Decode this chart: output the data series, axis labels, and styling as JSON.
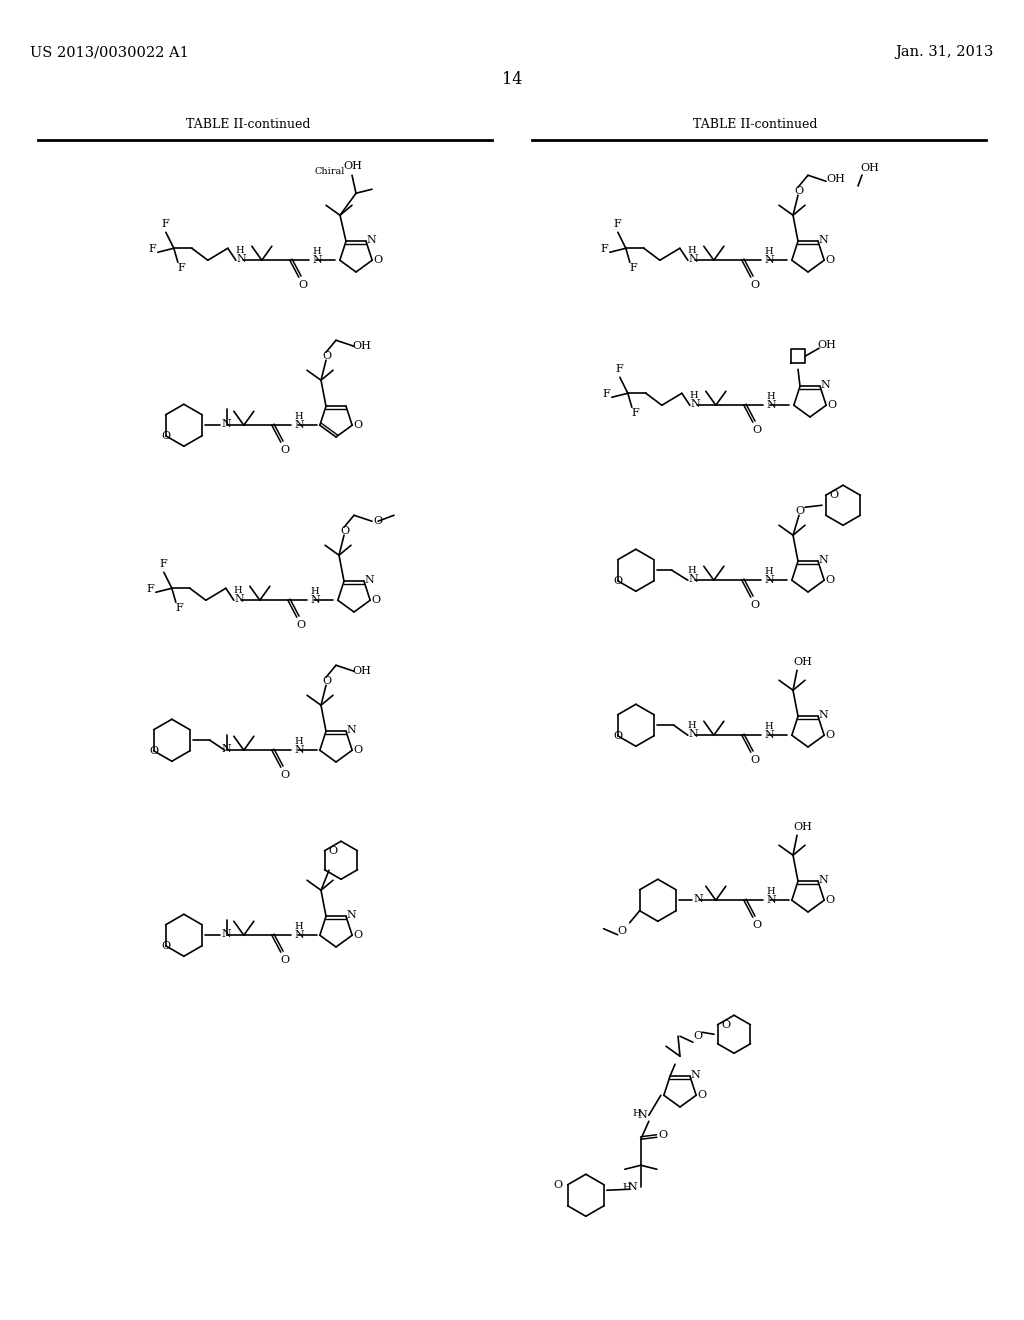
{
  "bg": "#ffffff",
  "header_left": "US 2013/0030022 A1",
  "header_right": "Jan. 31, 2013",
  "page_num": "14",
  "table_title": "TABLE II-continued"
}
